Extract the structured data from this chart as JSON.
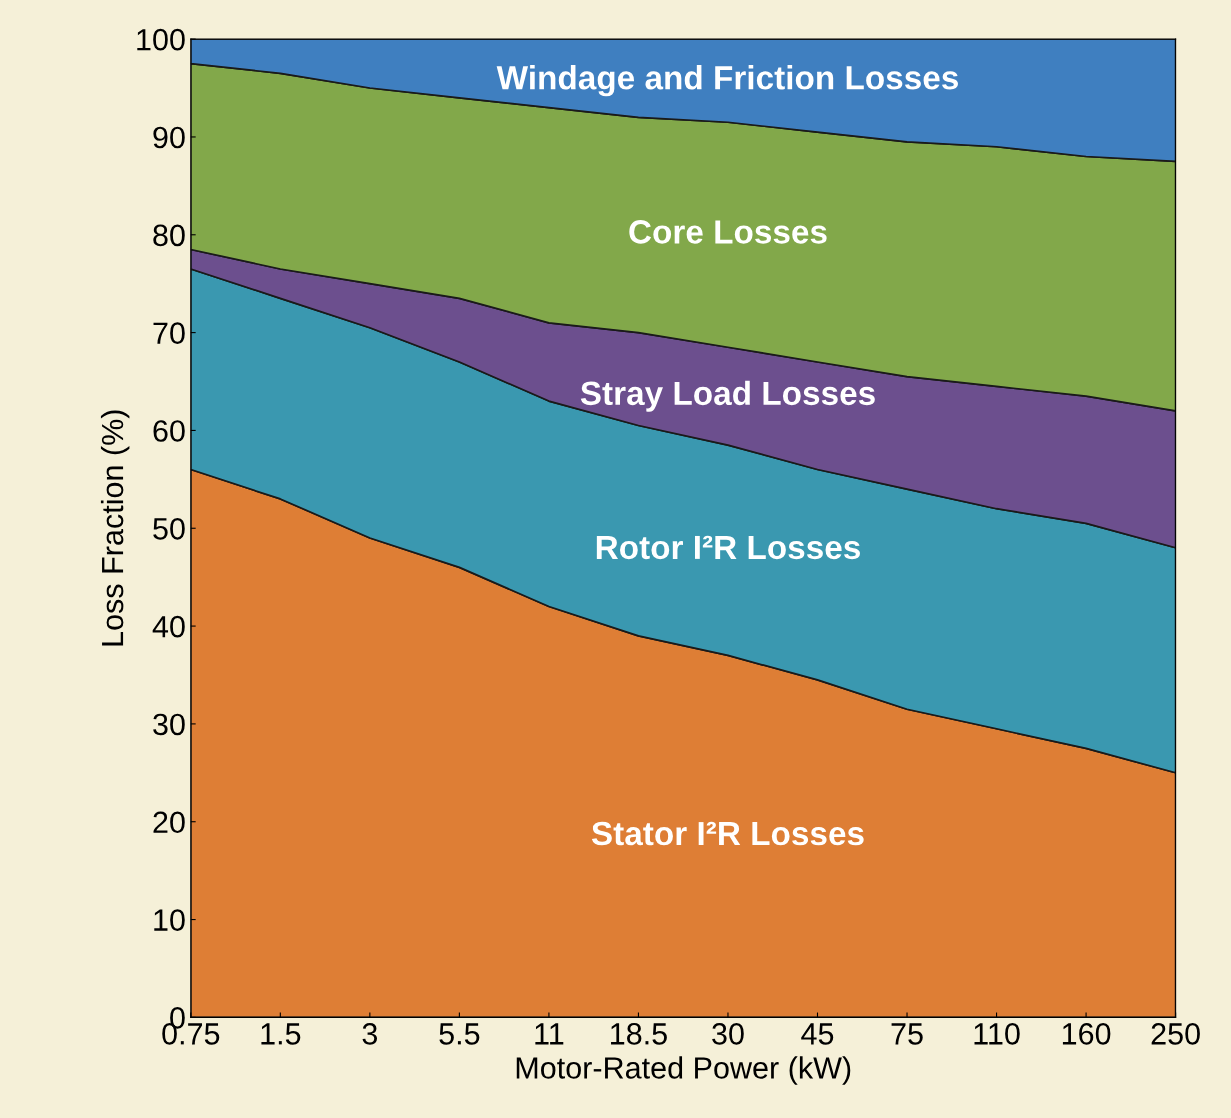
{
  "chart_data": {
    "type": "area",
    "stacked": true,
    "xlabel": "Motor-Rated Power (kW)",
    "ylabel": "Loss Fraction (%)",
    "categories": [
      "0.75",
      "1.5",
      "3",
      "5.5",
      "11",
      "18.5",
      "30",
      "45",
      "75",
      "110",
      "160",
      "250"
    ],
    "ylim": [
      0,
      100
    ],
    "yticks": [
      0,
      10,
      20,
      30,
      40,
      50,
      60,
      70,
      80,
      90,
      100
    ],
    "grid": false,
    "legend": false,
    "series": [
      {
        "name": "Stator I²R Losses",
        "color": "#de7e35",
        "values": [
          56,
          53,
          49,
          46,
          42,
          39,
          37,
          34.5,
          31.5,
          29.5,
          27.5,
          25
        ]
      },
      {
        "name": "Rotor I²R Losses",
        "color": "#3a98b0",
        "values": [
          20.5,
          20.5,
          21.5,
          21,
          21,
          21.5,
          21.5,
          21.5,
          22.5,
          22.5,
          23,
          23
        ]
      },
      {
        "name": "Stray Load Losses",
        "color": "#6c4f8e",
        "values": [
          2,
          3,
          4.5,
          6.5,
          8,
          9.5,
          10,
          11,
          11.5,
          12.5,
          13,
          14
        ]
      },
      {
        "name": "Core Losses",
        "color": "#82a84a",
        "values": [
          19,
          20,
          20,
          20.5,
          22,
          22,
          23,
          23.5,
          24,
          24.5,
          24.5,
          25.5
        ]
      },
      {
        "name": "Windage and Friction Losses",
        "color": "#3f7fc0",
        "values": [
          2.5,
          3.5,
          5,
          6,
          7,
          8,
          8.5,
          9.5,
          10.5,
          11,
          12,
          12.5
        ]
      }
    ]
  }
}
